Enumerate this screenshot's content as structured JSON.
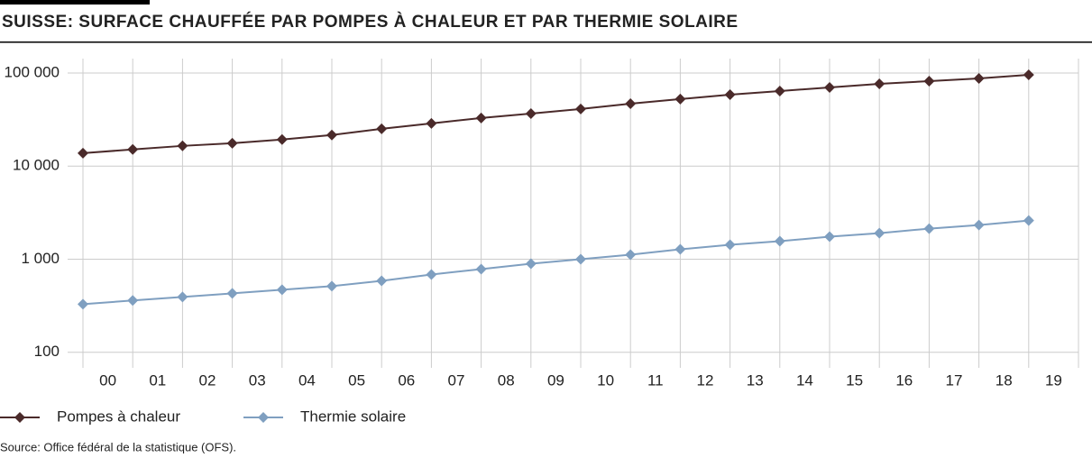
{
  "chart_data": {
    "type": "line",
    "title": "SUISSE: SURFACE CHAUFFÉE PAR POMPES À CHALEUR ET PAR THERMIE SOLAIRE",
    "source": "Source: Office fédéral de la statistique (OFS).",
    "categories": [
      "00",
      "01",
      "02",
      "03",
      "04",
      "05",
      "06",
      "07",
      "08",
      "09",
      "10",
      "11",
      "12",
      "13",
      "14",
      "15",
      "16",
      "17",
      "18",
      "19"
    ],
    "log_scale": true,
    "grid": true,
    "ylim": [
      68,
      143000
    ],
    "yticks": [
      100,
      {
        "value": 1000,
        "label": "1 000"
      },
      {
        "value": 10000,
        "label": "10 000"
      },
      {
        "value": 100000,
        "label": "100 000"
      }
    ],
    "series": [
      {
        "name": "Pompes à chaleur",
        "color": "#4a2a2a",
        "values": [
          13800,
          15100,
          16500,
          17600,
          19300,
          21600,
          25200,
          28800,
          32900,
          36700,
          41100,
          46900,
          52500,
          58600,
          64100,
          70000,
          76600,
          81900,
          87500,
          95700
        ]
      },
      {
        "name": "Thermie solaire",
        "color": "#7f9fc0",
        "values": [
          329,
          360,
          393,
          429,
          469,
          513,
          586,
          685,
          783,
          895,
          1000,
          1118,
          1277,
          1428,
          1561,
          1745,
          1906,
          2131,
          2329,
          2603
        ]
      }
    ]
  }
}
